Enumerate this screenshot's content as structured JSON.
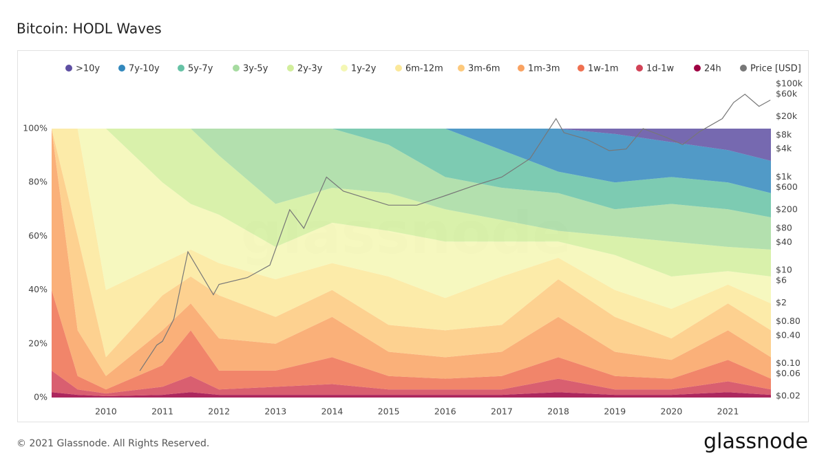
{
  "chart_data": {
    "type": "area",
    "title": "Bitcoin: HODL Waves",
    "watermark": "glassnode",
    "footer": "© 2021 Glassnode. All Rights Reserved.",
    "brand": "glassnode",
    "x": [
      2009.04,
      2009.5,
      2010,
      2011,
      2011.5,
      2012,
      2013,
      2014,
      2015,
      2016,
      2017,
      2018,
      2019,
      2020,
      2021,
      2021.76
    ],
    "xlim": [
      2009.04,
      2021.76
    ],
    "xticks": [
      2010,
      2011,
      2012,
      2013,
      2014,
      2015,
      2016,
      2017,
      2018,
      2019,
      2020,
      2021
    ],
    "ylim": [
      0,
      100
    ],
    "yticks": [
      {
        "value": 0,
        "label": "0%"
      },
      {
        "value": 20,
        "label": "20%"
      },
      {
        "value": 40,
        "label": "40%"
      },
      {
        "value": 60,
        "label": "60%"
      },
      {
        "value": 80,
        "label": "80%"
      },
      {
        "value": 100,
        "label": "100%"
      }
    ],
    "y2lim": [
      0.0187,
      126800
    ],
    "y2scale": "log",
    "y2ticks": [
      {
        "value": 100000,
        "label": "$100k"
      },
      {
        "value": 60000,
        "label": "$60k"
      },
      {
        "value": 20000,
        "label": "$20k"
      },
      {
        "value": 8000,
        "label": "$8k"
      },
      {
        "value": 4000,
        "label": "$4k"
      },
      {
        "value": 1000,
        "label": "$1k"
      },
      {
        "value": 600,
        "label": "$600"
      },
      {
        "value": 200,
        "label": "$200"
      },
      {
        "value": 80,
        "label": "$80"
      },
      {
        "value": 40,
        "label": "$40"
      },
      {
        "value": 10,
        "label": "$10"
      },
      {
        "value": 6,
        "label": "$6"
      },
      {
        "value": 2,
        "label": "$2"
      },
      {
        "value": 0.8,
        "label": "$0.80"
      },
      {
        "value": 0.4,
        "label": "$0.40"
      },
      {
        "value": 0.1,
        "label": "$0.10"
      },
      {
        "value": 0.06,
        "label": "$0.06"
      },
      {
        "value": 0.02,
        "label": "$0.02"
      }
    ],
    "series": [
      {
        "name": ">10y",
        "color": "#5e4fa2",
        "values": [
          0,
          0,
          0,
          0,
          0,
          0,
          0,
          0,
          0,
          0,
          0,
          0,
          2,
          5,
          8,
          12
        ]
      },
      {
        "name": "7y-10y",
        "color": "#3288bd",
        "values": [
          0,
          0,
          0,
          0,
          0,
          0,
          0,
          0,
          0,
          0,
          8,
          16,
          18,
          13,
          12,
          12
        ]
      },
      {
        "name": "5y-7y",
        "color": "#66c2a5",
        "values": [
          0,
          0,
          0,
          0,
          0,
          0,
          0,
          0,
          6,
          18,
          14,
          8,
          10,
          10,
          10,
          9
        ]
      },
      {
        "name": "3y-5y",
        "color": "#a6dba0",
        "values": [
          0,
          0,
          0,
          0,
          0,
          10,
          28,
          22,
          18,
          12,
          12,
          14,
          10,
          14,
          14,
          12
        ]
      },
      {
        "name": "2y-3y",
        "color": "#d2ee9c",
        "values": [
          0,
          0,
          0,
          20,
          28,
          22,
          16,
          13,
          14,
          12,
          8,
          4,
          7,
          13,
          9,
          10
        ]
      },
      {
        "name": "1y-2y",
        "color": "#f4f7b4",
        "values": [
          0,
          0,
          60,
          30,
          17,
          18,
          12,
          15,
          17,
          21,
          13,
          6,
          13,
          12,
          5,
          10
        ]
      },
      {
        "name": "6m-12m",
        "color": "#fbe89a",
        "values": [
          0,
          40,
          25,
          12,
          10,
          12,
          14,
          10,
          18,
          12,
          18,
          8,
          10,
          11,
          7,
          10
        ]
      },
      {
        "name": "3m-6m",
        "color": "#fdc97c",
        "values": [
          0,
          35,
          7,
          13,
          10,
          16,
          10,
          10,
          10,
          10,
          10,
          14,
          13,
          8,
          10,
          10
        ]
      },
      {
        "name": "1m-3m",
        "color": "#f9a261",
        "values": [
          60,
          17,
          5,
          13,
          10,
          12,
          10,
          15,
          9,
          8,
          9,
          15,
          9,
          7,
          11,
          8
        ]
      },
      {
        "name": "1w-1m",
        "color": "#ef7050",
        "values": [
          30,
          5,
          1.5,
          8,
          17,
          7,
          6,
          10,
          5,
          4,
          5,
          8,
          5,
          4,
          8,
          4
        ]
      },
      {
        "name": "1d-1w",
        "color": "#d24357",
        "values": [
          8,
          2,
          1,
          3,
          6,
          2,
          3,
          4,
          2,
          2,
          2,
          5,
          2,
          2,
          4,
          2
        ]
      },
      {
        "name": "24h",
        "color": "#9e0142",
        "values": [
          2,
          1,
          0.5,
          1,
          2,
          1,
          1,
          1,
          1,
          1,
          1,
          2,
          1,
          1,
          2,
          1
        ]
      },
      {
        "name": "Price [USD]",
        "color": "#777777",
        "type": "line",
        "axis": "y2",
        "x": [
          2010.6,
          2010.9,
          2011.0,
          2011.2,
          2011.45,
          2011.9,
          2012.0,
          2012.5,
          2012.9,
          2013.25,
          2013.5,
          2013.9,
          2014.2,
          2015.0,
          2015.5,
          2016.0,
          2016.5,
          2017.0,
          2017.5,
          2017.96,
          2018.1,
          2018.5,
          2018.9,
          2019.2,
          2019.5,
          2019.9,
          2020.2,
          2020.5,
          2020.9,
          2021.1,
          2021.3,
          2021.55,
          2021.75
        ],
        "values": [
          0.07,
          0.25,
          0.3,
          0.9,
          25,
          3,
          5,
          7,
          13,
          200,
          80,
          1000,
          500,
          250,
          250,
          400,
          650,
          1000,
          2500,
          18000,
          9000,
          6500,
          3700,
          4000,
          11000,
          7200,
          5000,
          9500,
          18000,
          40000,
          60000,
          33000,
          45000
        ]
      }
    ]
  }
}
